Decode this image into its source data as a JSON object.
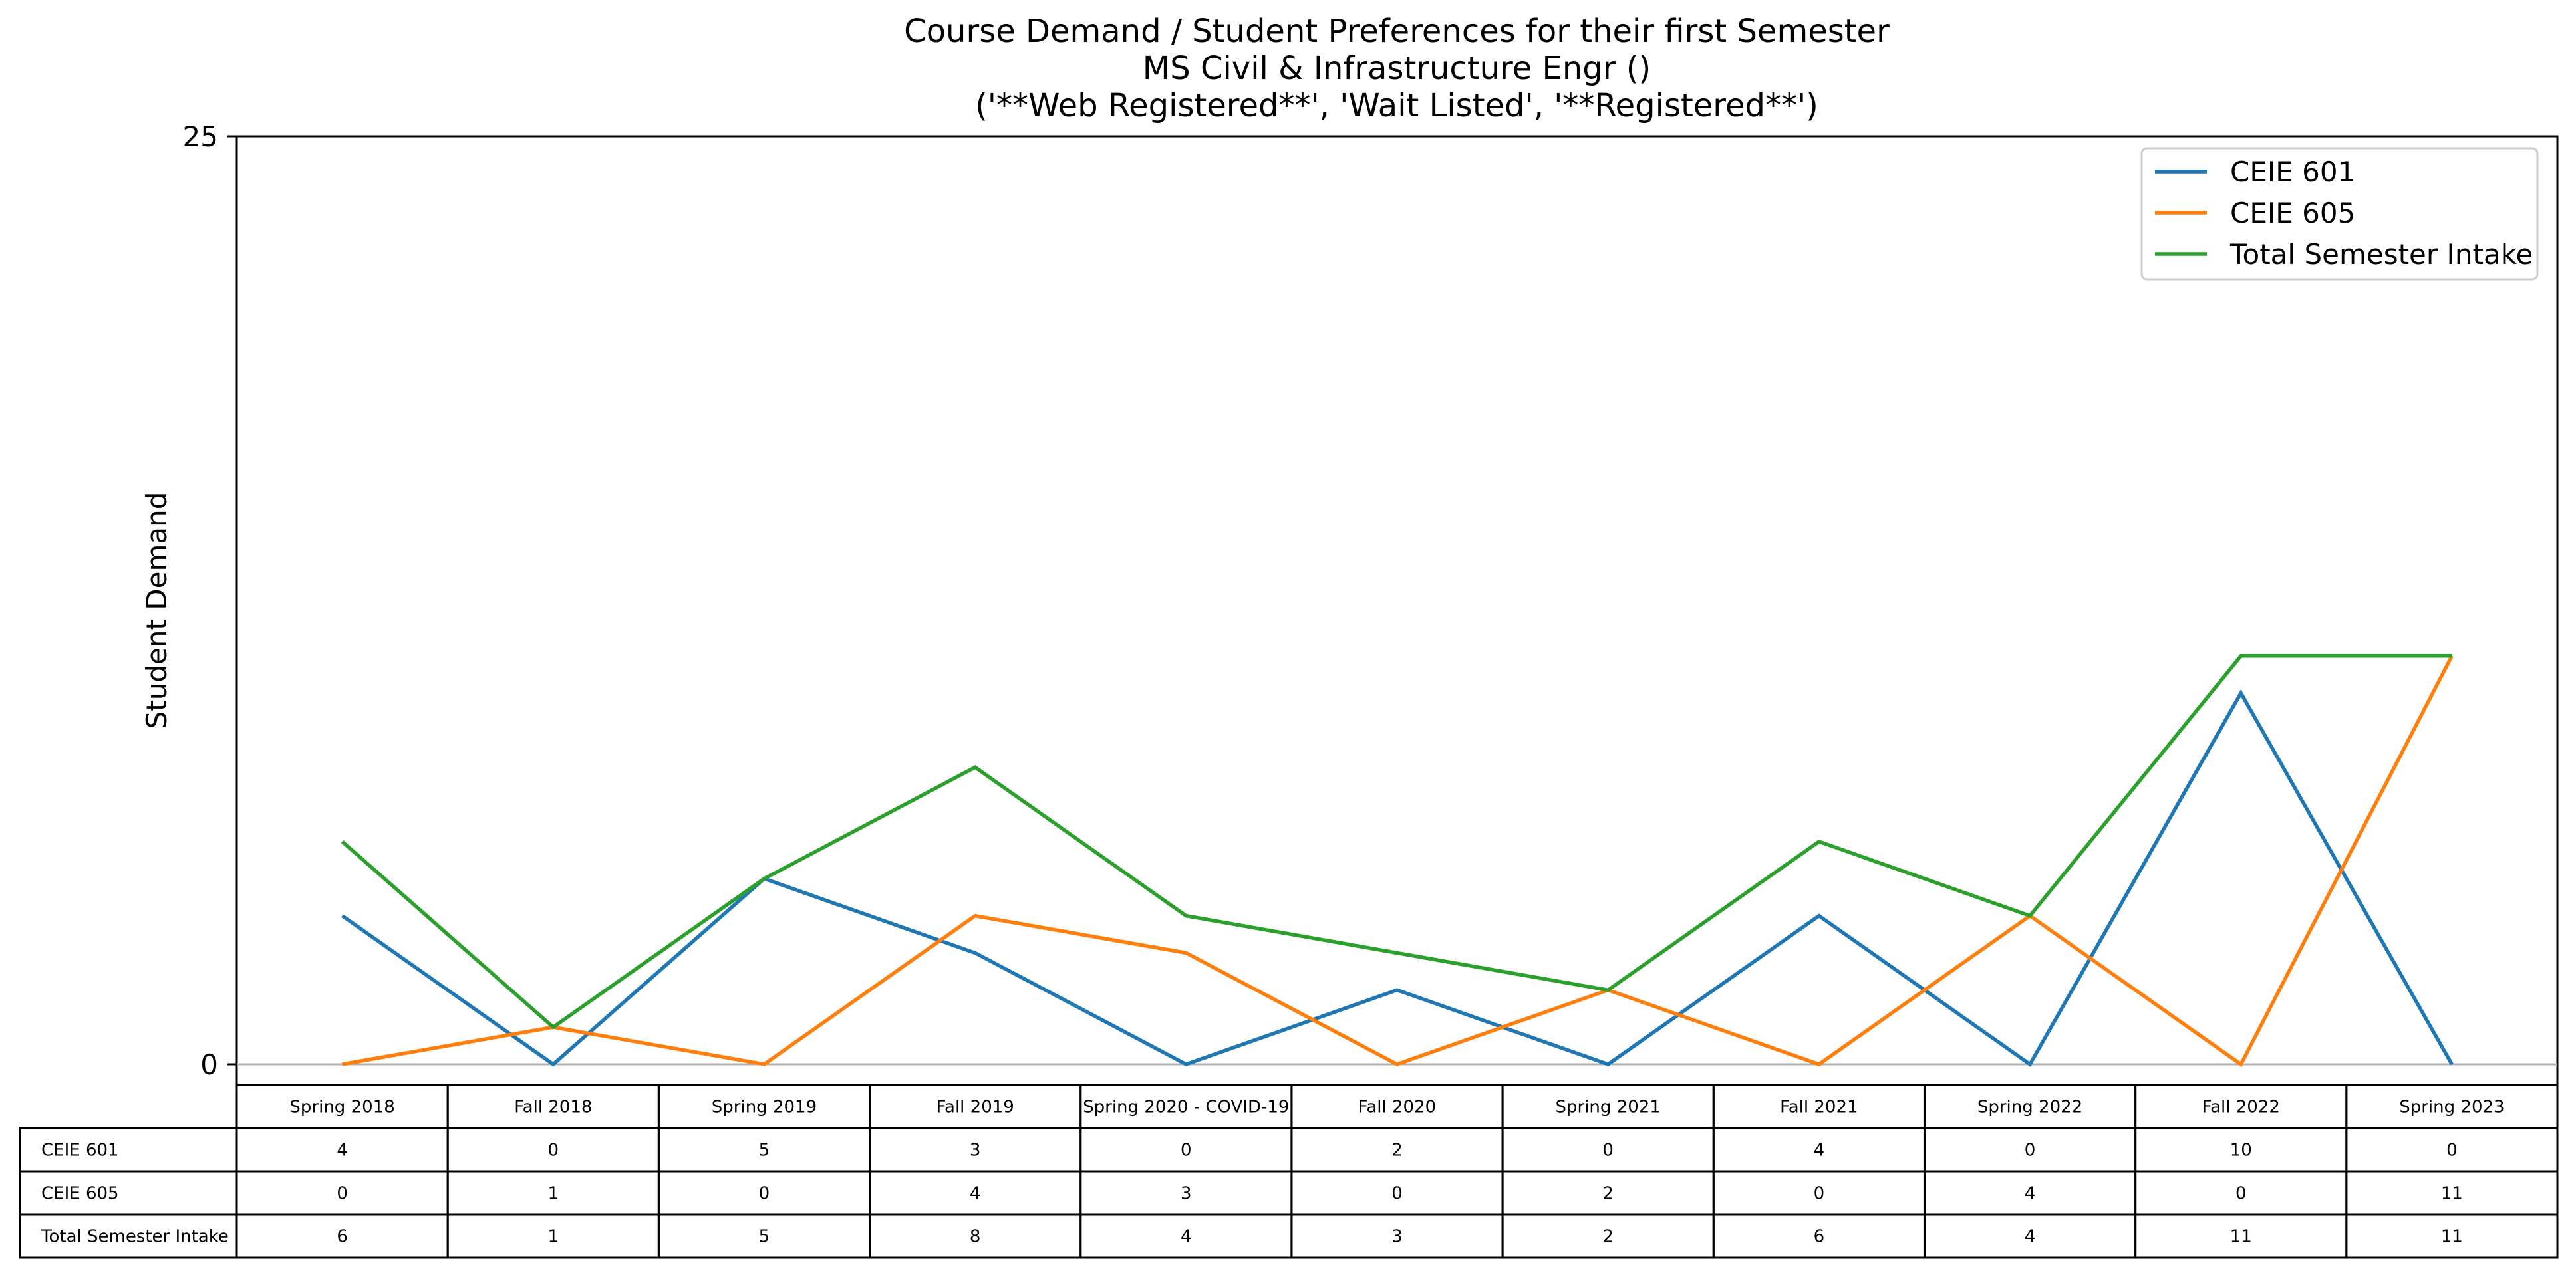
{
  "chart_data": {
    "type": "line",
    "title_lines": [
      "Course Demand / Student Preferences for their first Semester",
      "MS Civil & Infrastructure Engr ()",
      "('**Web Registered**', 'Wait Listed', '**Registered**')"
    ],
    "xlabel": "",
    "ylabel": "Student Demand",
    "ylim": [
      0,
      25
    ],
    "yticks": [
      "0",
      "25"
    ],
    "grid": false,
    "legend_position": "top-right",
    "categories": [
      "Spring 2018",
      "Fall 2018",
      "Spring 2019",
      "Fall 2019",
      "Spring 2020 - COVID-19",
      "Fall 2020",
      "Spring 2021",
      "Fall 2021",
      "Spring 2022",
      "Fall 2022",
      "Spring 2023"
    ],
    "series": [
      {
        "name": "CEIE 601",
        "color": "#1f77b4",
        "values": [
          4,
          0,
          5,
          3,
          0,
          2,
          0,
          4,
          0,
          10,
          0
        ]
      },
      {
        "name": "CEIE 605",
        "color": "#ff7f0e",
        "values": [
          0,
          1,
          0,
          4,
          3,
          0,
          2,
          0,
          4,
          0,
          11
        ]
      },
      {
        "name": "Total Semester Intake",
        "color": "#2ca02c",
        "values": [
          6,
          1,
          5,
          8,
          4,
          3,
          2,
          6,
          4,
          11,
          11
        ]
      }
    ]
  }
}
